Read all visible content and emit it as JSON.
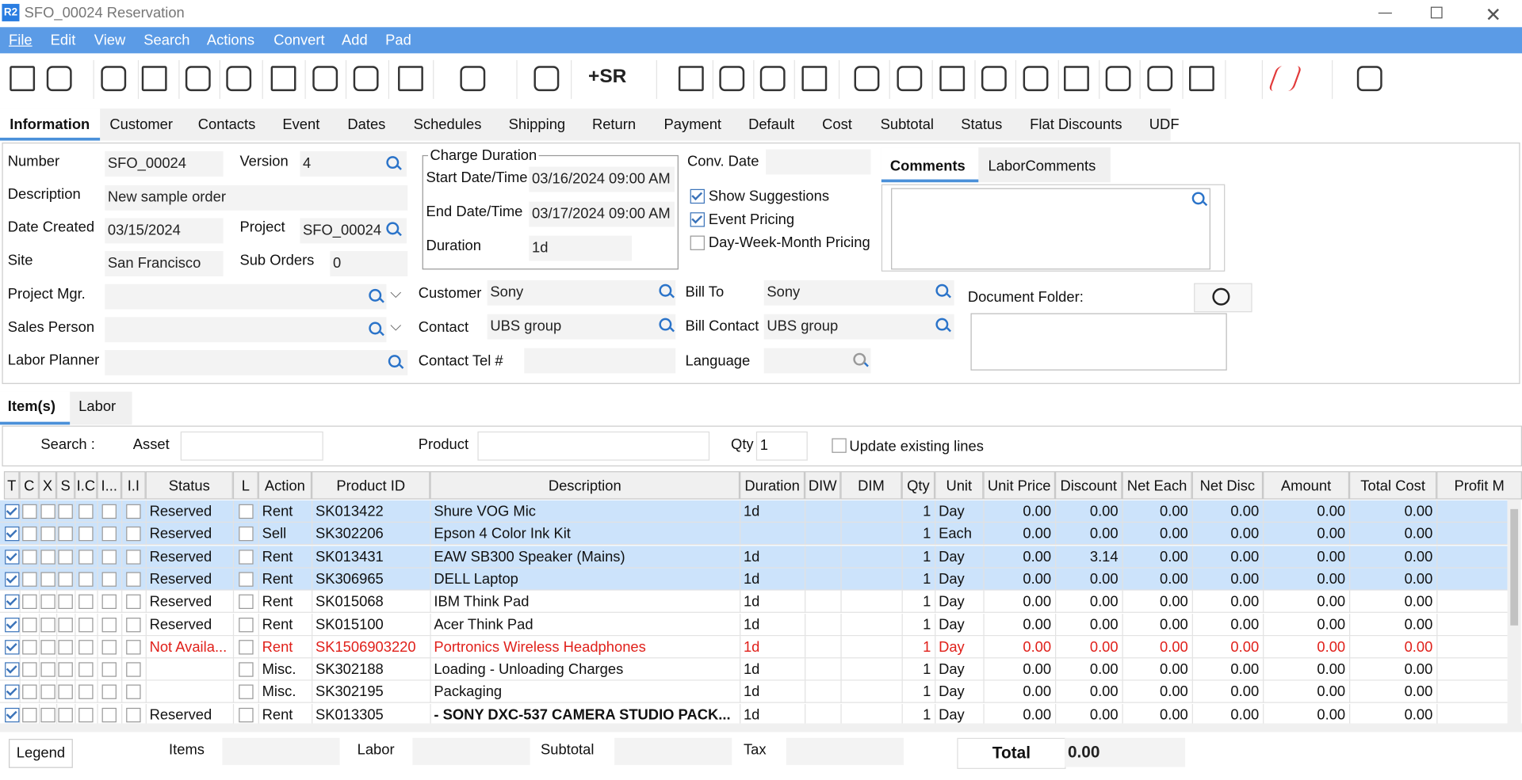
{
  "window": {
    "logo": "R2",
    "title": "SFO_00024 Reservation"
  },
  "menu": [
    "File",
    "Edit",
    "View",
    "Search",
    "Actions",
    "Convert",
    "Add",
    "Pad"
  ],
  "toolbar": {
    "sr_button": "+SR"
  },
  "tabs": [
    "Information",
    "Customer",
    "Contacts",
    "Event",
    "Dates",
    "Schedules",
    "Shipping",
    "Return",
    "Payment",
    "Default",
    "Cost",
    "Subtotal",
    "Status",
    "Flat Discounts",
    "UDF"
  ],
  "form": {
    "number_label": "Number",
    "number": "SFO_00024",
    "version_label": "Version",
    "version": "4",
    "description_label": "Description",
    "description": "New sample order",
    "date_created_label": "Date Created",
    "date_created": "03/15/2024",
    "project_label": "Project",
    "project": "SFO_00024",
    "site_label": "Site",
    "site": "San Francisco",
    "sub_orders_label": "Sub Orders",
    "sub_orders": "0",
    "project_mgr_label": "Project Mgr.",
    "sales_person_label": "Sales Person",
    "labor_planner_label": "Labor Planner",
    "charge_duration": {
      "legend": "Charge Duration",
      "start_label": "Start Date/Time",
      "start": "03/16/2024 09:00 AM",
      "end_label": "End Date/Time",
      "end": "03/17/2024 09:00 AM",
      "duration_label": "Duration",
      "duration": "1d"
    },
    "conv_date_label": "Conv. Date",
    "options": [
      {
        "label": "Show Suggestions",
        "checked": true
      },
      {
        "label": "Event Pricing",
        "checked": true
      },
      {
        "label": "Day-Week-Month Pricing",
        "checked": false
      }
    ],
    "comment_tabs": [
      "Comments",
      "LaborComments"
    ],
    "customer_label": "Customer",
    "customer": "Sony",
    "contact_label": "Contact",
    "contact": "UBS group",
    "contact_tel_label": "Contact Tel #",
    "bill_to_label": "Bill To",
    "bill_to": "Sony",
    "bill_contact_label": "Bill Contact",
    "bill_contact": "UBS group",
    "language_label": "Language",
    "document_folder_label": "Document Folder:"
  },
  "item_tabs": [
    "Item(s)",
    "Labor"
  ],
  "search": {
    "search_label": "Search :",
    "asset_label": "Asset",
    "product_label": "Product",
    "qty_label": "Qty",
    "qty": "1",
    "update_label": "Update existing lines"
  },
  "grid": {
    "columns": [
      "T",
      "C",
      "X",
      "S",
      "I.C",
      "I...",
      "I.I",
      "Status",
      "L",
      "Action",
      "Product ID",
      "Description",
      "Duration",
      "DIW",
      "DIM",
      "Qty",
      "Unit",
      "Unit Price",
      "Discount",
      "Net Each",
      "Net Disc",
      "Amount",
      "Total Cost",
      "Profit M"
    ],
    "rows": [
      {
        "selected": true,
        "status": "Reserved",
        "action": "Rent",
        "product_id": "SK013422",
        "description": "Shure VOG Mic",
        "duration": "1d",
        "qty": "1",
        "unit": "Day",
        "unit_price": "0.00",
        "discount": "0.00",
        "net_each": "0.00",
        "net_disc": "0.00",
        "amount": "0.00",
        "total_cost": "0.00"
      },
      {
        "selected": true,
        "status": "Reserved",
        "action": "Sell",
        "product_id": "SK302206",
        "description": "Epson 4 Color Ink Kit",
        "duration": null,
        "qty": "1",
        "unit": "Each",
        "unit_price": "0.00",
        "discount": "0.00",
        "net_each": "0.00",
        "net_disc": "0.00",
        "amount": "0.00",
        "total_cost": "0.00"
      },
      {
        "selected": true,
        "status": "Reserved",
        "action": "Rent",
        "product_id": "SK013431",
        "description": "EAW SB300 Speaker (Mains)",
        "duration": "1d",
        "qty": "1",
        "unit": "Day",
        "unit_price": "0.00",
        "discount": "3.14",
        "net_each": "0.00",
        "net_disc": "0.00",
        "amount": "0.00",
        "total_cost": "0.00"
      },
      {
        "selected": true,
        "status": "Reserved",
        "action": "Rent",
        "product_id": "SK306965",
        "description": "DELL Laptop",
        "duration": "1d",
        "qty": "1",
        "unit": "Day",
        "unit_price": "0.00",
        "discount": "0.00",
        "net_each": "0.00",
        "net_disc": "0.00",
        "amount": "0.00",
        "total_cost": "0.00"
      },
      {
        "selected": false,
        "status": "Reserved",
        "action": "Rent",
        "product_id": "SK015068",
        "description": "IBM Think Pad",
        "duration": "1d",
        "qty": "1",
        "unit": "Day",
        "unit_price": "0.00",
        "discount": "0.00",
        "net_each": "0.00",
        "net_disc": "0.00",
        "amount": "0.00",
        "total_cost": "0.00"
      },
      {
        "selected": false,
        "status": "Reserved",
        "action": "Rent",
        "product_id": "SK015100",
        "description": "Acer Think Pad",
        "duration": "1d",
        "qty": "1",
        "unit": "Day",
        "unit_price": "0.00",
        "discount": "0.00",
        "net_each": "0.00",
        "net_disc": "0.00",
        "amount": "0.00",
        "total_cost": "0.00"
      },
      {
        "selected": false,
        "color": "#e0201a",
        "status": "Not Availa...",
        "action": "Rent",
        "product_id": "SK1506903220",
        "description": "Portronics Wireless Headphones",
        "duration": "1d",
        "qty": "1",
        "unit": "Day",
        "unit_price": "0.00",
        "discount": "0.00",
        "net_each": "0.00",
        "net_disc": "0.00",
        "amount": "0.00",
        "total_cost": "0.00"
      },
      {
        "selected": false,
        "status": null,
        "action": "Misc.",
        "product_id": "SK302188",
        "description": "Loading - Unloading Charges",
        "duration": "1d",
        "qty": "1",
        "unit": "Day",
        "unit_price": "0.00",
        "discount": "0.00",
        "net_each": "0.00",
        "net_disc": "0.00",
        "amount": "0.00",
        "total_cost": "0.00"
      },
      {
        "selected": false,
        "status": null,
        "action": "Misc.",
        "product_id": "SK302195",
        "description": "Packaging",
        "duration": "1d",
        "qty": "1",
        "unit": "Day",
        "unit_price": "0.00",
        "discount": "0.00",
        "net_each": "0.00",
        "net_disc": "0.00",
        "amount": "0.00",
        "total_cost": "0.00"
      },
      {
        "selected": false,
        "bold": true,
        "status": "Reserved",
        "action": "Rent",
        "product_id": "SK013305",
        "description": "- SONY DXC-537 CAMERA STUDIO PACK...",
        "duration": "1d",
        "qty": "1",
        "unit": "Day",
        "unit_price": "0.00",
        "discount": "0.00",
        "net_each": "0.00",
        "net_disc": "0.00",
        "amount": "0.00",
        "total_cost": "0.00"
      }
    ]
  },
  "footer": {
    "legend_button": "Legend",
    "items_label": "Items",
    "labor_label": "Labor",
    "subtotal_label": "Subtotal",
    "tax_label": "Tax",
    "total_label": "Total",
    "total": "0.00"
  }
}
